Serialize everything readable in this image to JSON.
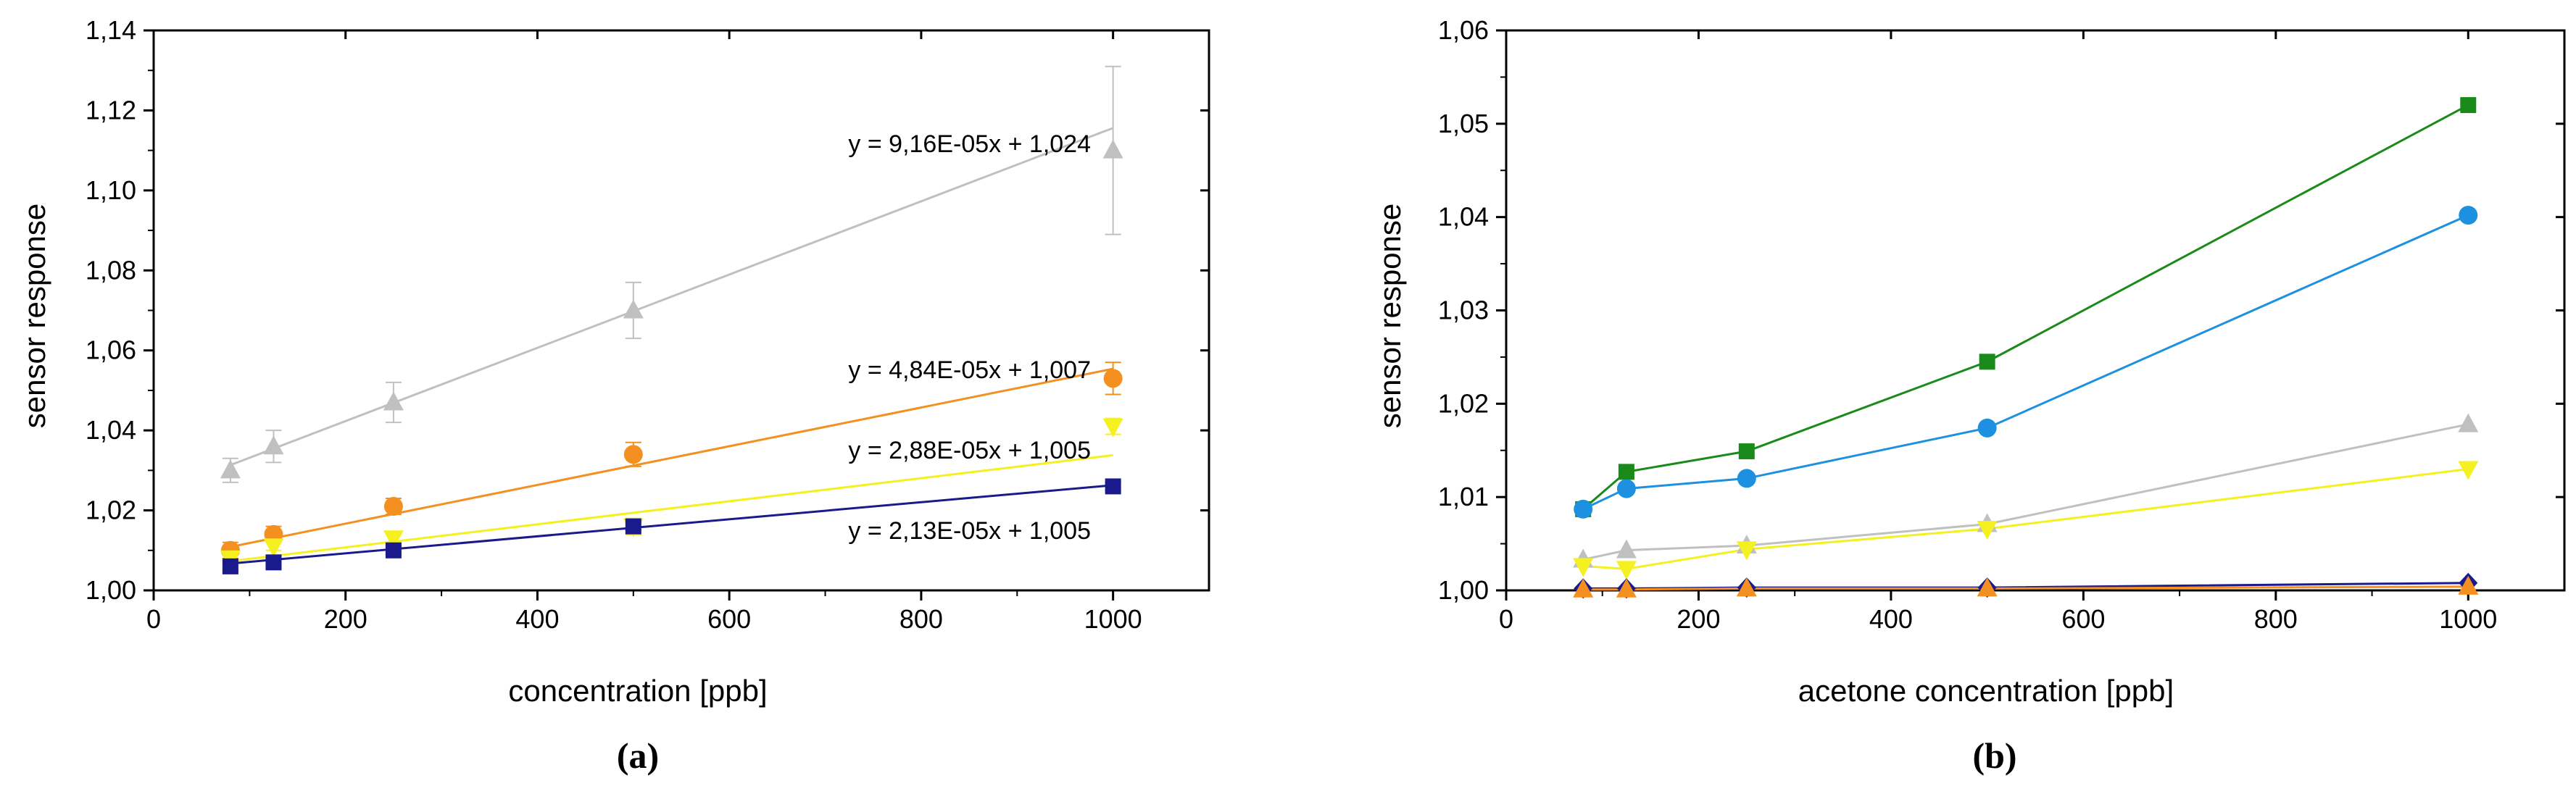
{
  "chart_data": [
    {
      "id": "a",
      "type": "scatter",
      "caption": "(a)",
      "xlabel": "concentration [ppb]",
      "ylabel": "sensor response",
      "xlim": [
        0,
        1100
      ],
      "ylim": [
        1.0,
        1.14
      ],
      "xticks": [
        0,
        200,
        400,
        600,
        800,
        1000
      ],
      "yticks": [
        1.0,
        1.02,
        1.04,
        1.06,
        1.08,
        1.1,
        1.12,
        1.14
      ],
      "xtick_labels": [
        "0",
        "200",
        "400",
        "600",
        "800",
        "1000"
      ],
      "ytick_labels": [
        "1,00",
        "1,02",
        "1,04",
        "1,06",
        "1,08",
        "1,10",
        "1,12",
        "1,14"
      ],
      "x": [
        80,
        125,
        250,
        500,
        1000
      ],
      "series": [
        {
          "name": "gray",
          "color": "#c0c0c0",
          "marker": "triangle-up",
          "values": [
            1.03,
            1.036,
            1.047,
            1.07,
            1.11
          ],
          "errors": [
            0.003,
            0.004,
            0.005,
            0.007,
            0.021
          ],
          "fit": [
            9.16e-05,
            1.024
          ]
        },
        {
          "name": "orange",
          "color": "#f39020",
          "marker": "circle",
          "values": [
            1.01,
            1.014,
            1.021,
            1.034,
            1.053
          ],
          "errors": [
            0.002,
            0.002,
            0.002,
            0.003,
            0.004
          ],
          "fit": [
            4.84e-05,
            1.007
          ]
        },
        {
          "name": "yellow",
          "color": "#f5f020",
          "marker": "triangle-down",
          "values": [
            1.008,
            1.011,
            1.013,
            1.016,
            1.041
          ],
          "errors": [
            0.001,
            0.001,
            0.001,
            0.002,
            0.002
          ],
          "fit": [
            2.88e-05,
            1.005
          ]
        },
        {
          "name": "navy",
          "color": "#1a1a8c",
          "marker": "square",
          "values": [
            1.006,
            1.007,
            1.01,
            1.016,
            1.026
          ],
          "errors": [
            0.001,
            0.001,
            0.001,
            0.001,
            0.001
          ],
          "fit": [
            2.13e-05,
            1.005
          ]
        }
      ],
      "annotations": [
        {
          "text": "y = 9,16E-05x + 1,024",
          "x": 870,
          "y": 1.1115
        },
        {
          "text": "y = 4,84E-05x + 1,007",
          "x": 870,
          "y": 1.0555
        },
        {
          "text": "y = 2,88E-05x + 1,005",
          "x": 870,
          "y": 1.0335
        },
        {
          "text": "y = 2,13E-05x + 1,005",
          "x": 870,
          "y": 1.0135
        }
      ]
    },
    {
      "id": "b",
      "type": "line",
      "caption": "(b)",
      "xlabel": "acetone concentration [ppb]",
      "ylabel": "sensor response",
      "xlim": [
        0,
        1100
      ],
      "ylim": [
        1.0,
        1.06
      ],
      "xticks": [
        0,
        200,
        400,
        600,
        800,
        1000
      ],
      "yticks": [
        1.0,
        1.01,
        1.02,
        1.03,
        1.04,
        1.05,
        1.06
      ],
      "xtick_labels": [
        "0",
        "200",
        "400",
        "600",
        "800",
        "1000"
      ],
      "ytick_labels": [
        "1,00",
        "1,01",
        "1,02",
        "1,03",
        "1,04",
        "1,05",
        "1,06"
      ],
      "x": [
        80,
        125,
        250,
        500,
        1000
      ],
      "series": [
        {
          "name": "green",
          "color": "#1a8a1a",
          "marker": "square",
          "values": [
            1.0087,
            1.0127,
            1.0149,
            1.0245,
            1.052
          ]
        },
        {
          "name": "blue",
          "color": "#1e90e0",
          "marker": "circle",
          "values": [
            1.0087,
            1.0109,
            1.012,
            1.0174,
            1.0402
          ]
        },
        {
          "name": "gray",
          "color": "#c0c0c0",
          "marker": "triangle-up",
          "values": [
            1.0033,
            1.0043,
            1.0048,
            1.0071,
            1.0178
          ]
        },
        {
          "name": "yellow",
          "color": "#f5f020",
          "marker": "triangle-down",
          "values": [
            1.0026,
            1.0023,
            1.0044,
            1.0066,
            1.013
          ]
        },
        {
          "name": "navy",
          "color": "#1a1a8c",
          "marker": "diamond",
          "values": [
            1.0002,
            1.0002,
            1.0003,
            1.0003,
            1.0008
          ]
        },
        {
          "name": "orange",
          "color": "#f39020",
          "marker": "triangle-up",
          "values": [
            1.0001,
            1.0001,
            1.0002,
            1.0002,
            1.0004
          ]
        }
      ]
    }
  ]
}
